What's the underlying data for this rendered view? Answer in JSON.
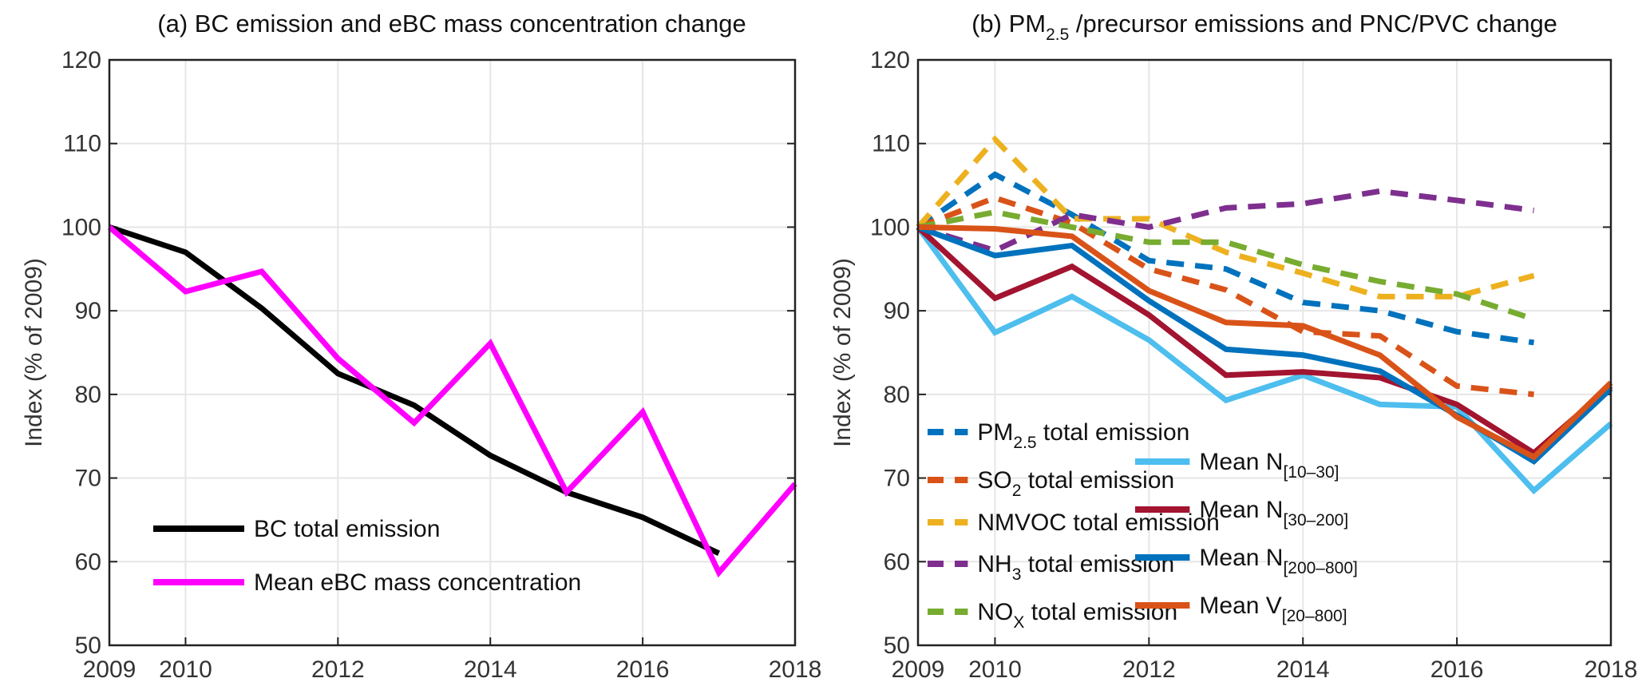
{
  "chart_data": [
    {
      "type": "line",
      "title": {
        "pre": "(a) BC emission and eBC mass concentration change",
        "sub": "",
        "post": ""
      },
      "ylabel": "Index (% of 2009)",
      "xlim": [
        2009,
        2018
      ],
      "ylim": [
        50,
        120
      ],
      "xticks": [
        "2009",
        "2010",
        "2012",
        "2014",
        "2016",
        "2018"
      ],
      "yticks": [
        "50",
        "60",
        "70",
        "80",
        "90",
        "100",
        "110",
        "120"
      ],
      "grid": true,
      "legend_placement": "bottom-left",
      "series": [
        {
          "name": {
            "pre": "BC total emission",
            "sub": "",
            "post": ""
          },
          "color": "#000000",
          "style": "solid",
          "x": [
            2009,
            2010,
            2011,
            2012,
            2013,
            2014,
            2015,
            2016,
            2017
          ],
          "y": [
            100,
            97,
            90.3,
            82.5,
            78.7,
            72.7,
            68.3,
            65.3,
            61
          ]
        },
        {
          "name": {
            "pre": "Mean eBC mass concentration",
            "sub": "",
            "post": ""
          },
          "color": "#FF00FF",
          "style": "solid",
          "x": [
            2009,
            2010,
            2011,
            2012,
            2013,
            2014,
            2015,
            2016,
            2017,
            2018
          ],
          "y": [
            100,
            92.3,
            94.7,
            84.3,
            76.6,
            86.1,
            68.3,
            77.9,
            58.7,
            69.3
          ]
        }
      ]
    },
    {
      "type": "line",
      "title": {
        "pre": "(b) PM",
        "sub": "2.5",
        "post": " /precursor emissions and PNC/PVC change"
      },
      "ylabel": "Index (% of 2009)",
      "xlim": [
        2009,
        2018
      ],
      "ylim": [
        50,
        120
      ],
      "xticks": [
        "2009",
        "2010",
        "2012",
        "2014",
        "2016",
        "2018"
      ],
      "yticks": [
        "50",
        "60",
        "70",
        "80",
        "90",
        "100",
        "110",
        "120"
      ],
      "grid": true,
      "legend_placement": "bottom",
      "series": [
        {
          "name": {
            "pre": "PM",
            "sub": "2.5",
            "post": " total emission"
          },
          "color": "#0072BD",
          "style": "dashed",
          "x": [
            2009,
            2010,
            2011,
            2012,
            2013,
            2014,
            2015,
            2016,
            2017
          ],
          "y": [
            100,
            106.3,
            101.5,
            96,
            95,
            91,
            90,
            87.5,
            86.2
          ]
        },
        {
          "name": {
            "pre": "SO",
            "sub": "2",
            "post": " total emission"
          },
          "color": "#D95319",
          "style": "dashed",
          "x": [
            2009,
            2010,
            2011,
            2012,
            2013,
            2014,
            2015,
            2016,
            2017
          ],
          "y": [
            100,
            103.5,
            100.5,
            95,
            92.5,
            87.5,
            87,
            81,
            80
          ]
        },
        {
          "name": {
            "pre": "NMVOC total emission",
            "sub": "",
            "post": ""
          },
          "color": "#EDB120",
          "style": "dashed",
          "x": [
            2009,
            2010,
            2011,
            2012,
            2013,
            2014,
            2015,
            2016,
            2017
          ],
          "y": [
            100,
            110.5,
            101,
            101,
            97,
            94.5,
            91.7,
            91.7,
            94.2
          ]
        },
        {
          "name": {
            "pre": "NH",
            "sub": "3",
            "post": " total emission"
          },
          "color": "#7E2F8E",
          "style": "dashed",
          "x": [
            2009,
            2010,
            2011,
            2012,
            2013,
            2014,
            2015,
            2016,
            2017
          ],
          "y": [
            100,
            97.2,
            101.5,
            100,
            102.3,
            102.8,
            104.3,
            103.2,
            102
          ]
        },
        {
          "name": {
            "pre": "NO",
            "sub": "X",
            "post": " total emission"
          },
          "color": "#77AC30",
          "style": "dashed",
          "x": [
            2009,
            2010,
            2011,
            2012,
            2013,
            2014,
            2015,
            2016,
            2017
          ],
          "y": [
            100,
            101.8,
            100,
            98.2,
            98.2,
            95.5,
            93.5,
            92,
            89
          ]
        },
        {
          "name": {
            "pre": "Mean N",
            "sub": "[10–30]",
            "post": ""
          },
          "color": "#4DBEEE",
          "style": "solid",
          "x": [
            2009,
            2010,
            2011,
            2012,
            2013,
            2014,
            2015,
            2016,
            2017,
            2018
          ],
          "y": [
            100,
            87.4,
            91.7,
            86.5,
            79.3,
            82.3,
            78.8,
            78.5,
            68.5,
            76.5
          ]
        },
        {
          "name": {
            "pre": "Mean N",
            "sub": "[30–200]",
            "post": ""
          },
          "color": "#A2142F",
          "style": "solid",
          "x": [
            2009,
            2010,
            2011,
            2012,
            2013,
            2014,
            2015,
            2016,
            2017,
            2018
          ],
          "y": [
            100,
            91.5,
            95.3,
            89.5,
            82.3,
            82.7,
            82,
            78.8,
            73,
            81
          ]
        },
        {
          "name": {
            "pre": "Mean N",
            "sub": "[200–800]",
            "post": ""
          },
          "color": "#0072BD",
          "style": "solid",
          "x": [
            2009,
            2010,
            2011,
            2012,
            2013,
            2014,
            2015,
            2016,
            2017,
            2018
          ],
          "y": [
            100,
            96.6,
            97.8,
            91.2,
            85.4,
            84.7,
            82.8,
            77.5,
            72,
            80.7
          ]
        },
        {
          "name": {
            "pre": "Mean V",
            "sub": "[20–800]",
            "post": ""
          },
          "color": "#D95319",
          "style": "solid",
          "x": [
            2009,
            2010,
            2011,
            2012,
            2013,
            2014,
            2015,
            2016,
            2017,
            2018
          ],
          "y": [
            100,
            99.8,
            98.9,
            92.4,
            88.6,
            88.2,
            84.7,
            77.3,
            72.5,
            81.4
          ]
        }
      ]
    }
  ]
}
